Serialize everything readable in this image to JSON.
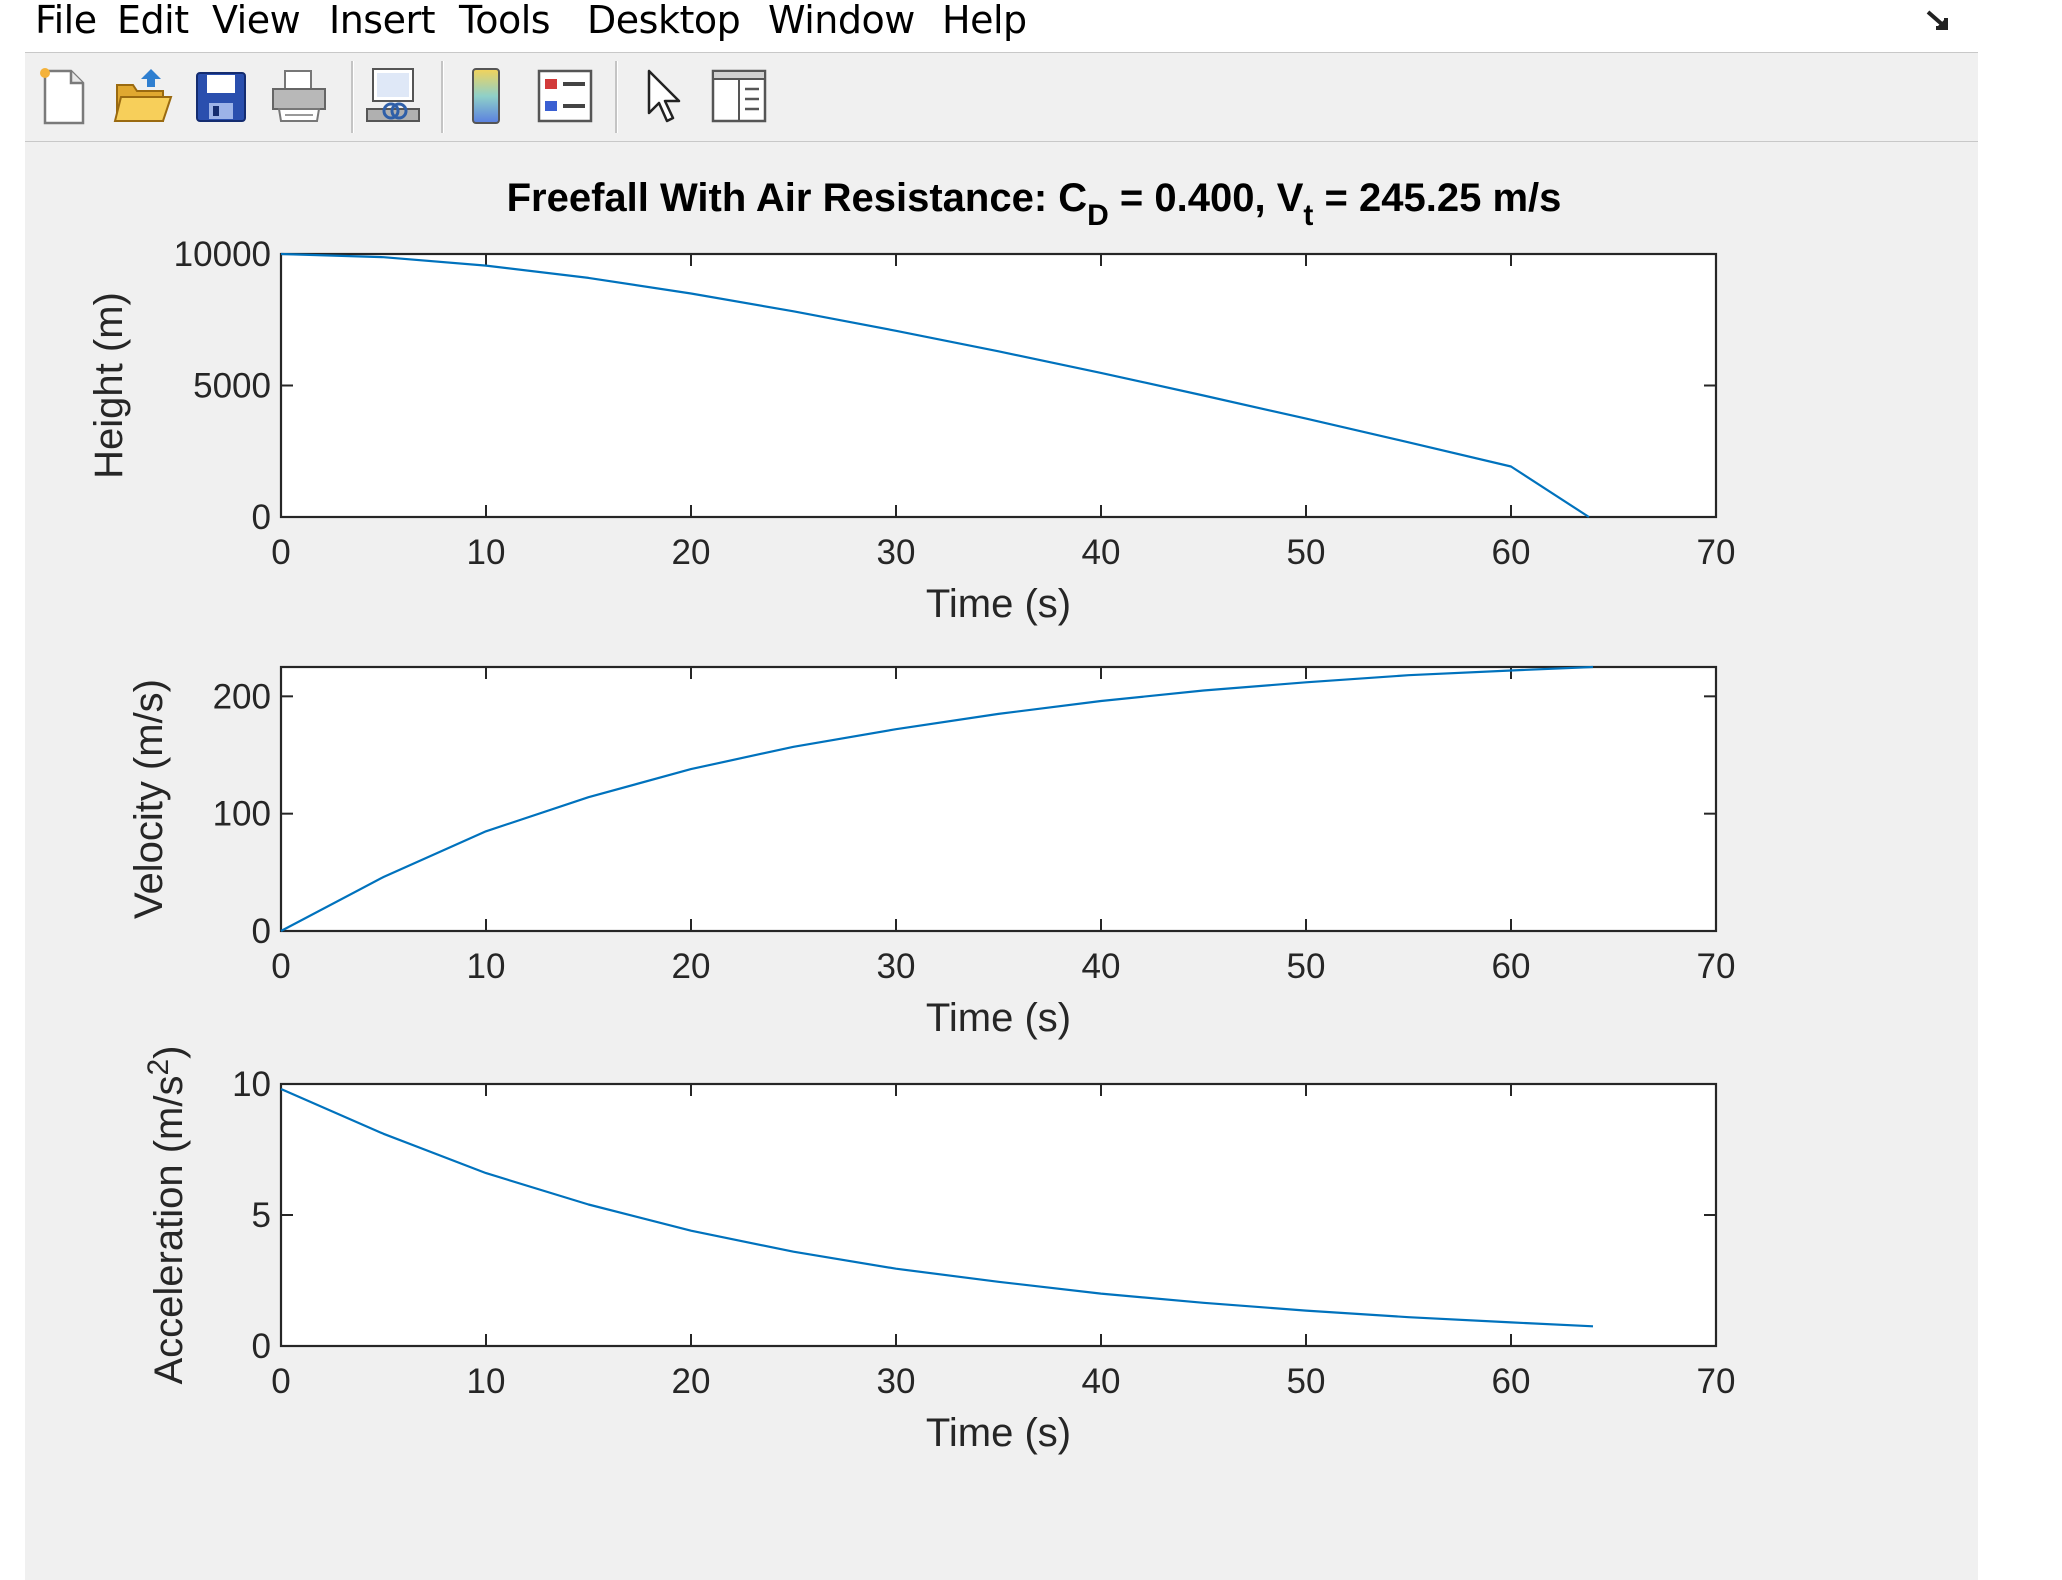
{
  "menubar": {
    "items": [
      "File",
      "Edit",
      "View",
      "Insert",
      "Tools",
      "Desktop",
      "Window",
      "Help"
    ]
  },
  "toolbar": {
    "buttons": [
      "new-figure-icon",
      "open-file-icon",
      "save-icon",
      "print-icon",
      "link-plot-icon",
      "colorbar-icon",
      "legend-icon",
      "pointer-icon",
      "property-inspector-icon"
    ]
  },
  "colors": {
    "line": "#0072BD",
    "axes": "#262626",
    "window_bg": "#f0f0f0"
  },
  "title": {
    "part1": "Freefall With Air Resistance: C",
    "sub1": "D",
    "part2": " = 0.400, V",
    "sub2": "t",
    "part3": " = 245.25 m/s"
  },
  "chart_data": [
    {
      "type": "line",
      "ylabel": "Height (m)",
      "xlabel": "Time (s)",
      "xlim": [
        0,
        70
      ],
      "ylim": [
        0,
        10000
      ],
      "xticks": [
        0,
        10,
        20,
        30,
        40,
        50,
        60,
        70
      ],
      "yticks": [
        0,
        5000,
        10000
      ],
      "x": [
        0,
        5,
        10,
        15,
        20,
        25,
        30,
        35,
        40,
        45,
        50,
        55,
        60,
        63.8
      ],
      "y": [
        10000,
        9880,
        9560,
        9090,
        8500,
        7820,
        7080,
        6300,
        5480,
        4620,
        3740,
        2840,
        1920,
        0
      ]
    },
    {
      "type": "line",
      "ylabel": "Velocity (m/s)",
      "xlabel": "Time (s)",
      "xlim": [
        0,
        70
      ],
      "ylim": [
        0,
        225
      ],
      "xticks": [
        0,
        10,
        20,
        30,
        40,
        50,
        60,
        70
      ],
      "yticks": [
        0,
        100,
        200
      ],
      "x": [
        0,
        5,
        10,
        15,
        20,
        25,
        30,
        35,
        40,
        45,
        50,
        55,
        60,
        64
      ],
      "y": [
        0,
        46,
        85,
        114,
        138,
        157,
        172,
        185,
        196,
        205,
        212,
        218,
        222,
        225
      ]
    },
    {
      "type": "line",
      "ylabel_base": "Acceleration (m/s",
      "ylabel_sup": "2",
      "ylabel_end": ")",
      "xlabel": "Time (s)",
      "xlim": [
        0,
        70
      ],
      "ylim": [
        0,
        10
      ],
      "xticks": [
        0,
        10,
        20,
        30,
        40,
        50,
        60,
        70
      ],
      "yticks": [
        0,
        5,
        10
      ],
      "x": [
        0,
        5,
        10,
        15,
        20,
        25,
        30,
        35,
        40,
        45,
        50,
        55,
        60,
        64
      ],
      "y": [
        9.81,
        8.1,
        6.6,
        5.4,
        4.4,
        3.6,
        2.95,
        2.45,
        2.0,
        1.65,
        1.35,
        1.1,
        0.9,
        0.75
      ]
    }
  ]
}
